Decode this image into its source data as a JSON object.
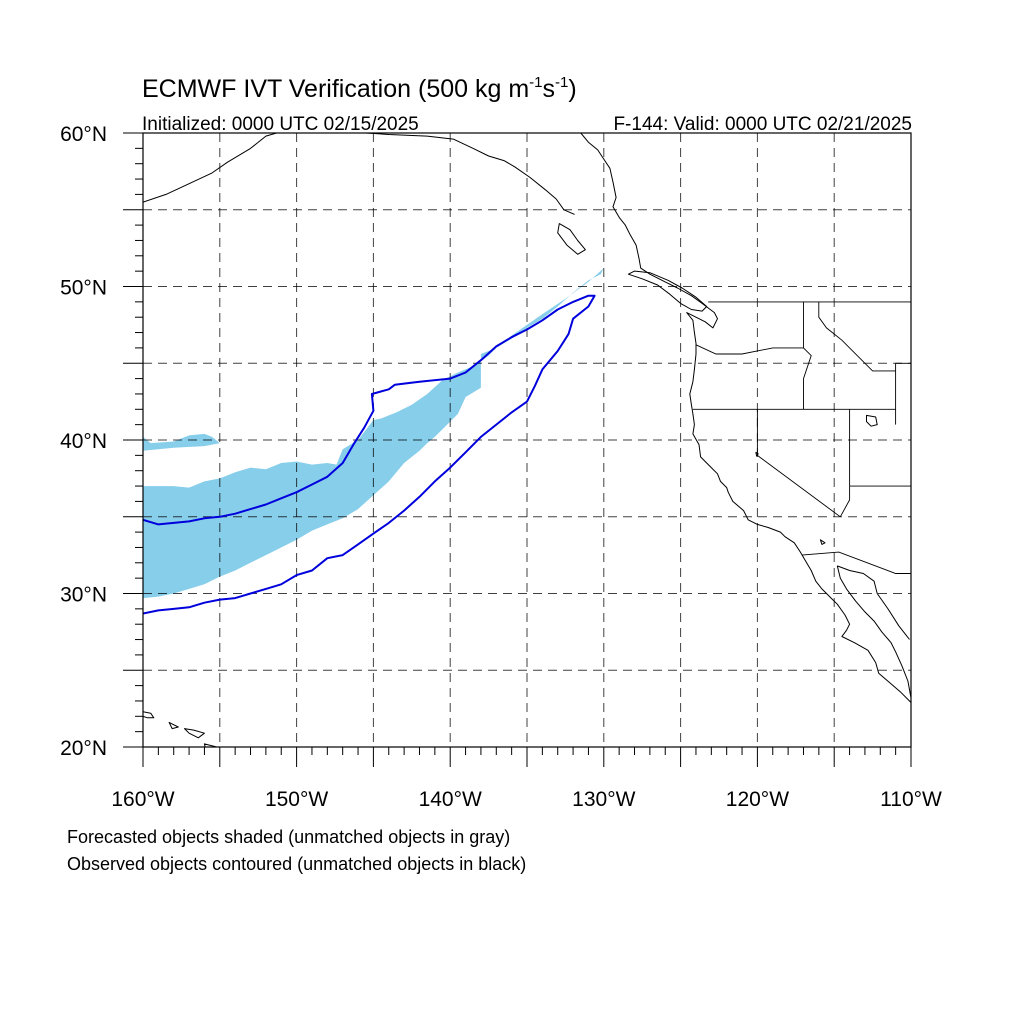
{
  "title": {
    "main": "ECMWF IVT Verification (500 kg m",
    "exp1": "-1",
    "mid": "s",
    "exp2": "-1",
    "close": ")"
  },
  "subtitle_left": "Initialized: 0000 UTC 02/15/2025",
  "subtitle_right": "F-144: Valid: 0000 UTC 02/21/2025",
  "map_extent": {
    "lon": [
      -160,
      -110
    ],
    "lat": [
      20,
      60
    ]
  },
  "lat_labels": [
    {
      "lat": 60,
      "label": "60°N"
    },
    {
      "lat": 50,
      "label": "50°N"
    },
    {
      "lat": 40,
      "label": "40°N"
    },
    {
      "lat": 30,
      "label": "30°N"
    },
    {
      "lat": 20,
      "label": "20°N"
    }
  ],
  "lon_labels": [
    {
      "lon": -160,
      "label": "160°W"
    },
    {
      "lon": -150,
      "label": "150°W"
    },
    {
      "lon": -140,
      "label": "140°W"
    },
    {
      "lon": -130,
      "label": "130°W"
    },
    {
      "lon": -120,
      "label": "120°W"
    },
    {
      "lon": -110,
      "label": "110°W"
    }
  ],
  "gridlines": {
    "lat_every_deg": 5,
    "lon_every_deg": 5,
    "style": "dashed"
  },
  "colors": {
    "forecast_fill": "#87ceeb",
    "observed_contour": "#0000dd"
  },
  "footnotes": [
    "Forecasted objects shaded (unmatched objects in gray)",
    "Observed objects contoured (unmatched objects in black)"
  ],
  "forecast_object": [
    [
      -160,
      37.0
    ],
    [
      -158,
      37.0
    ],
    [
      -157,
      36.9
    ],
    [
      -156,
      37.3
    ],
    [
      -155,
      37.5
    ],
    [
      -154,
      37.9
    ],
    [
      -153,
      38.2
    ],
    [
      -152,
      38.1
    ],
    [
      -151,
      38.5
    ],
    [
      -150,
      38.6
    ],
    [
      -149,
      38.4
    ],
    [
      -148,
      38.5
    ],
    [
      -147.4,
      38.4
    ],
    [
      -147,
      39.4
    ],
    [
      -146,
      40.0
    ],
    [
      -145,
      41.3
    ],
    [
      -144.5,
      41.4
    ],
    [
      -144,
      41.6
    ],
    [
      -143.5,
      41.8
    ],
    [
      -142.5,
      42.3
    ],
    [
      -141.5,
      43.0
    ],
    [
      -140.5,
      43.9
    ],
    [
      -139.5,
      44.4
    ],
    [
      -138.3,
      44.9
    ],
    [
      -137.5,
      45.5
    ],
    [
      -137,
      46.0
    ],
    [
      -136,
      46.8
    ],
    [
      -135,
      47.5
    ],
    [
      -134,
      48.2
    ],
    [
      -132.5,
      49.2
    ],
    [
      -131,
      50.3
    ],
    [
      -130,
      51.2
    ],
    [
      -130.2,
      50.8
    ],
    [
      -131,
      50.4
    ],
    [
      -132,
      49.6
    ],
    [
      -133,
      48.7
    ],
    [
      -134,
      47.9
    ],
    [
      -135,
      47.3
    ],
    [
      -136,
      46.6
    ],
    [
      -137,
      46.0
    ],
    [
      -138,
      45.6
    ],
    [
      -138,
      44.8
    ],
    [
      -138,
      43.4
    ],
    [
      -139,
      42.8
    ],
    [
      -139.5,
      41.7
    ],
    [
      -140,
      41.2
    ],
    [
      -140.5,
      40.7
    ],
    [
      -141,
      40.2
    ],
    [
      -141.5,
      39.8
    ],
    [
      -142,
      39.3
    ],
    [
      -143,
      38.5
    ],
    [
      -144,
      37.3
    ],
    [
      -145,
      36.4
    ],
    [
      -146,
      35.5
    ],
    [
      -147,
      34.9
    ],
    [
      -148,
      34.5
    ],
    [
      -149,
      34.1
    ],
    [
      -150,
      33.5
    ],
    [
      -151,
      33.0
    ],
    [
      -152,
      32.5
    ],
    [
      -153,
      32.0
    ],
    [
      -154,
      31.5
    ],
    [
      -155,
      31.1
    ],
    [
      -156,
      30.6
    ],
    [
      -157,
      30.3
    ],
    [
      -158,
      30.0
    ],
    [
      -159,
      29.8
    ],
    [
      -160,
      29.7
    ]
  ],
  "forecast_object_2": [
    [
      -160,
      40.2
    ],
    [
      -159.5,
      39.8
    ],
    [
      -158,
      39.9
    ],
    [
      -157,
      40.3
    ],
    [
      -156,
      40.4
    ],
    [
      -155.5,
      40.2
    ],
    [
      -155,
      39.8
    ],
    [
      -156,
      39.6
    ],
    [
      -158,
      39.5
    ],
    [
      -160,
      39.3
    ]
  ],
  "observed_object": [
    [
      -160,
      34.8
    ],
    [
      -159,
      34.5
    ],
    [
      -158,
      34.6
    ],
    [
      -157,
      34.7
    ],
    [
      -156,
      34.9
    ],
    [
      -155,
      35.0
    ],
    [
      -154,
      35.2
    ],
    [
      -153,
      35.5
    ],
    [
      -152,
      35.8
    ],
    [
      -151,
      36.2
    ],
    [
      -150,
      36.6
    ],
    [
      -149,
      37.1
    ],
    [
      -148,
      37.6
    ],
    [
      -147,
      38.5
    ],
    [
      -146.3,
      39.7
    ],
    [
      -145.6,
      40.8
    ],
    [
      -145,
      41.9
    ],
    [
      -145.1,
      43.0
    ],
    [
      -144,
      43.3
    ],
    [
      -143.6,
      43.6
    ],
    [
      -142,
      43.8
    ],
    [
      -140,
      44.0
    ],
    [
      -139,
      44.4
    ],
    [
      -138,
      45.2
    ],
    [
      -137,
      46.1
    ],
    [
      -136,
      46.7
    ],
    [
      -135,
      47.2
    ],
    [
      -134,
      47.8
    ],
    [
      -133,
      48.5
    ],
    [
      -132,
      49.0
    ],
    [
      -131,
      49.4
    ],
    [
      -130.6,
      49.4
    ],
    [
      -131,
      48.7
    ],
    [
      -132,
      47.9
    ],
    [
      -132.3,
      46.9
    ],
    [
      -133,
      45.8
    ],
    [
      -134,
      44.6
    ],
    [
      -134.5,
      43.5
    ],
    [
      -135,
      42.5
    ],
    [
      -136,
      41.8
    ],
    [
      -137,
      41.0
    ],
    [
      -138,
      40.2
    ],
    [
      -139,
      39.2
    ],
    [
      -140,
      38.2
    ],
    [
      -141,
      37.3
    ],
    [
      -142,
      36.3
    ],
    [
      -143,
      35.4
    ],
    [
      -144,
      34.6
    ],
    [
      -145,
      33.9
    ],
    [
      -146,
      33.2
    ],
    [
      -147,
      32.5
    ],
    [
      -148,
      32.3
    ],
    [
      -149,
      31.5
    ],
    [
      -150,
      31.2
    ],
    [
      -151,
      30.6
    ],
    [
      -152,
      30.3
    ],
    [
      -153,
      30.0
    ],
    [
      -154,
      29.7
    ],
    [
      -155,
      29.6
    ],
    [
      -156,
      29.4
    ],
    [
      -157,
      29.1
    ],
    [
      -158,
      29.0
    ],
    [
      -159,
      28.9
    ],
    [
      -160,
      28.7
    ]
  ],
  "coastlines": {
    "west_coast": [
      [
        -131.5,
        60.0
      ],
      [
        -131.0,
        59.4
      ],
      [
        -130.4,
        58.9
      ],
      [
        -130.0,
        58.3
      ],
      [
        -129.6,
        57.7
      ],
      [
        -129.4,
        56.8
      ],
      [
        -129.2,
        55.8
      ],
      [
        -129.4,
        55.2
      ],
      [
        -129.0,
        54.5
      ],
      [
        -128.6,
        54.0
      ],
      [
        -128.3,
        53.4
      ],
      [
        -127.9,
        52.7
      ],
      [
        -127.7,
        51.8
      ],
      [
        -127.6,
        51.2
      ],
      [
        -127.0,
        50.8
      ],
      [
        -126.0,
        50.3
      ],
      [
        -125.2,
        49.9
      ],
      [
        -124.3,
        49.4
      ],
      [
        -123.6,
        48.9
      ],
      [
        -123.2,
        48.6
      ],
      [
        -122.8,
        48.3
      ],
      [
        -122.6,
        47.9
      ],
      [
        -122.9,
        47.3
      ],
      [
        -123.4,
        47.7
      ],
      [
        -124.0,
        48.0
      ],
      [
        -124.6,
        48.3
      ],
      [
        -124.2,
        47.8
      ],
      [
        -124.1,
        47.0
      ],
      [
        -124.0,
        46.3
      ],
      [
        -124.0,
        45.6
      ],
      [
        -124.1,
        44.6
      ],
      [
        -124.2,
        43.8
      ],
      [
        -124.4,
        43.0
      ],
      [
        -124.3,
        42.3
      ],
      [
        -124.2,
        41.7
      ],
      [
        -124.1,
        41.0
      ],
      [
        -124.2,
        40.4
      ],
      [
        -123.8,
        39.7
      ],
      [
        -123.7,
        38.9
      ],
      [
        -123.1,
        38.3
      ],
      [
        -122.6,
        37.8
      ],
      [
        -122.4,
        37.3
      ],
      [
        -122.0,
        36.9
      ],
      [
        -121.9,
        36.6
      ],
      [
        -121.6,
        36.0
      ],
      [
        -120.9,
        35.4
      ],
      [
        -120.6,
        34.8
      ],
      [
        -120.0,
        34.5
      ],
      [
        -119.3,
        34.3
      ],
      [
        -118.5,
        34.0
      ],
      [
        -118.2,
        33.7
      ],
      [
        -117.6,
        33.3
      ],
      [
        -117.2,
        32.7
      ],
      [
        -116.8,
        32.0
      ],
      [
        -116.5,
        31.5
      ],
      [
        -116.2,
        30.8
      ],
      [
        -115.8,
        30.3
      ],
      [
        -115.2,
        29.7
      ],
      [
        -114.8,
        29.3
      ],
      [
        -114.3,
        28.6
      ],
      [
        -114.0,
        28.0
      ],
      [
        -114.2,
        27.6
      ],
      [
        -114.5,
        27.2
      ],
      [
        -113.7,
        26.8
      ],
      [
        -112.8,
        26.3
      ],
      [
        -112.3,
        25.5
      ],
      [
        -112.1,
        24.8
      ],
      [
        -111.4,
        24.2
      ],
      [
        -110.7,
        23.6
      ],
      [
        -110.0,
        22.9
      ]
    ],
    "gulf_of_california": [
      [
        -114.8,
        31.8
      ],
      [
        -114.6,
        31.0
      ],
      [
        -114.2,
        30.3
      ],
      [
        -113.6,
        29.5
      ],
      [
        -113.0,
        28.8
      ],
      [
        -112.4,
        28.2
      ],
      [
        -111.9,
        27.5
      ],
      [
        -111.3,
        26.8
      ],
      [
        -111.0,
        26.2
      ],
      [
        -110.6,
        25.3
      ],
      [
        -110.2,
        24.3
      ],
      [
        -110.0,
        23.2
      ]
    ],
    "mexico_mainland": [
      [
        -114.8,
        31.8
      ],
      [
        -114.0,
        31.5
      ],
      [
        -113.1,
        31.3
      ],
      [
        -112.4,
        30.8
      ],
      [
        -112.2,
        30.0
      ],
      [
        -111.5,
        29.0
      ],
      [
        -110.8,
        27.9
      ],
      [
        -110.1,
        27.0
      ]
    ],
    "alaska_gulf": [
      [
        -160.0,
        55.5
      ],
      [
        -158.5,
        56.0
      ],
      [
        -157.0,
        56.7
      ],
      [
        -155.5,
        57.4
      ],
      [
        -154.5,
        58.1
      ],
      [
        -153.0,
        59.0
      ],
      [
        -152.0,
        59.8
      ],
      [
        -151.3,
        60.0
      ]
    ],
    "alaska_gulf_2": [
      [
        -145.5,
        60.0
      ],
      [
        -144.0,
        59.9
      ],
      [
        -141.5,
        59.8
      ],
      [
        -139.8,
        59.6
      ],
      [
        -138.5,
        59.0
      ],
      [
        -137.5,
        58.5
      ],
      [
        -136.5,
        58.2
      ],
      [
        -135.8,
        57.8
      ],
      [
        -134.8,
        57.1
      ],
      [
        -133.8,
        56.3
      ],
      [
        -133.1,
        55.7
      ],
      [
        -132.6,
        55.0
      ],
      [
        -131.9,
        54.7
      ]
    ],
    "vancouver_island": [
      [
        -128.4,
        50.8
      ],
      [
        -127.5,
        50.5
      ],
      [
        -126.5,
        50.1
      ],
      [
        -125.7,
        49.5
      ],
      [
        -125.0,
        48.9
      ],
      [
        -124.3,
        48.5
      ],
      [
        -123.6,
        48.4
      ],
      [
        -123.3,
        48.7
      ],
      [
        -124.0,
        49.3
      ],
      [
        -124.9,
        49.9
      ],
      [
        -125.8,
        50.4
      ],
      [
        -127.0,
        50.9
      ],
      [
        -128.0,
        51.0
      ],
      [
        -128.4,
        50.8
      ]
    ],
    "haida_gwaii": [
      [
        -132.9,
        54.1
      ],
      [
        -132.2,
        53.7
      ],
      [
        -131.7,
        53.0
      ],
      [
        -131.2,
        52.4
      ],
      [
        -131.7,
        52.1
      ],
      [
        -132.4,
        52.7
      ],
      [
        -133.0,
        53.5
      ],
      [
        -132.9,
        54.1
      ]
    ],
    "hawaii_1": [
      [
        -160.0,
        22.3
      ],
      [
        -159.5,
        22.2
      ],
      [
        -159.3,
        21.9
      ],
      [
        -159.7,
        21.9
      ],
      [
        -160.0,
        22.0
      ],
      [
        -160.0,
        22.3
      ]
    ],
    "hawaii_2": [
      [
        -158.3,
        21.6
      ],
      [
        -157.7,
        21.3
      ],
      [
        -158.1,
        21.2
      ],
      [
        -158.3,
        21.6
      ]
    ],
    "hawaii_3": [
      [
        -157.3,
        21.2
      ],
      [
        -156.7,
        21.1
      ],
      [
        -156.0,
        20.9
      ],
      [
        -156.4,
        20.6
      ],
      [
        -157.0,
        20.9
      ],
      [
        -157.3,
        21.2
      ]
    ],
    "hawaii_4": [
      [
        -156.0,
        20.2
      ],
      [
        -155.2,
        20.0
      ],
      [
        -154.8,
        19.6
      ],
      [
        -155.5,
        19.3
      ],
      [
        -155.9,
        19.8
      ],
      [
        -156.0,
        20.2
      ]
    ]
  },
  "borders": {
    "canada_us": [
      [
        -123.2,
        49.0
      ],
      [
        -110,
        49.0
      ]
    ],
    "wa_or": [
      [
        -124.0,
        46.2
      ],
      [
        -122.7,
        45.6
      ],
      [
        -121.0,
        45.6
      ],
      [
        -119.0,
        46.0
      ],
      [
        -117.0,
        46.0
      ]
    ],
    "wa_id": [
      [
        -117.0,
        49.0
      ],
      [
        -117.0,
        46.0
      ]
    ],
    "or_ca_nv": [
      [
        -124.2,
        42.0
      ],
      [
        -111.0,
        42.0
      ]
    ],
    "or_id": [
      [
        -117.0,
        46.0
      ],
      [
        -116.5,
        45.5
      ],
      [
        -117.0,
        44.0
      ],
      [
        -117.0,
        42.0
      ]
    ],
    "id_mt": [
      [
        -116.0,
        49.0
      ],
      [
        -116.0,
        48.0
      ],
      [
        -115.5,
        47.3
      ],
      [
        -114.5,
        46.5
      ],
      [
        -113.5,
        45.5
      ],
      [
        -112.5,
        44.5
      ],
      [
        -111.0,
        44.5
      ]
    ],
    "wy_west": [
      [
        -111.0,
        45.0
      ],
      [
        -111.0,
        41.0
      ]
    ],
    "mt_wy": [
      [
        -111.0,
        45.0
      ],
      [
        -110.0,
        45.0
      ]
    ],
    "ca_nv": [
      [
        -120.0,
        42.0
      ],
      [
        -120.0,
        39.0
      ],
      [
        -114.6,
        35.0
      ]
    ],
    "nv_ut": [
      [
        -114.0,
        42.0
      ],
      [
        -114.0,
        37.0
      ]
    ],
    "nv_az": [
      [
        -114.0,
        37.0
      ],
      [
        -114.0,
        36.1
      ],
      [
        -114.6,
        35.0
      ]
    ],
    "ut_az": [
      [
        -114.0,
        37.0
      ],
      [
        -110.0,
        37.0
      ]
    ],
    "us_mexico": [
      [
        -117.1,
        32.5
      ],
      [
        -114.7,
        32.7
      ],
      [
        -111.0,
        31.3
      ],
      [
        -110.0,
        31.3
      ]
    ]
  },
  "lakes": {
    "great_salt_lake": [
      [
        -112.9,
        41.6
      ],
      [
        -112.3,
        41.5
      ],
      [
        -112.2,
        41.0
      ],
      [
        -112.6,
        40.9
      ],
      [
        -112.9,
        41.2
      ],
      [
        -112.9,
        41.6
      ]
    ],
    "lake_tahoe": [
      [
        -120.1,
        39.2
      ],
      [
        -119.95,
        39.1
      ],
      [
        -120.05,
        38.95
      ],
      [
        -120.1,
        39.2
      ]
    ],
    "salton_sea": [
      [
        -115.9,
        33.5
      ],
      [
        -115.6,
        33.3
      ],
      [
        -115.8,
        33.2
      ],
      [
        -115.9,
        33.5
      ]
    ]
  }
}
